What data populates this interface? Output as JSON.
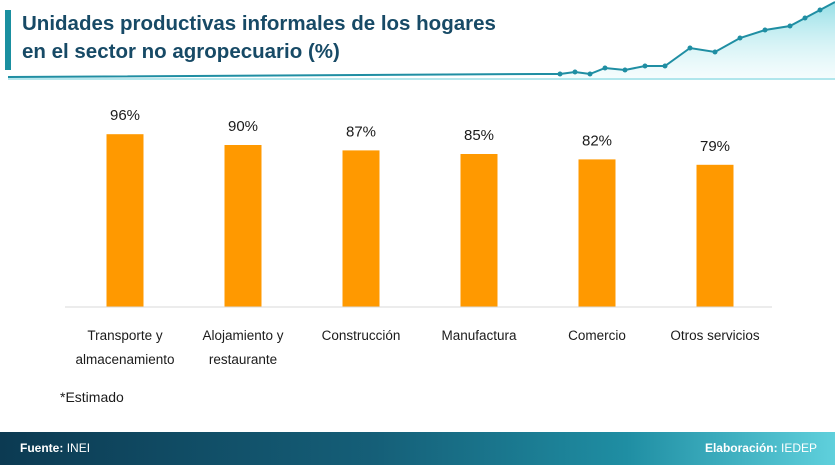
{
  "header": {
    "title_line1": "Unidades productivas informales de los hogares",
    "title_line2": "en el sector no agropecuario (%)"
  },
  "chart_data": {
    "type": "bar",
    "title": "Unidades productivas informales de los hogares en el sector no agropecuario (%)",
    "categories": [
      [
        "Transporte y",
        "almacenamiento"
      ],
      [
        "Alojamiento y",
        "restaurante"
      ],
      [
        "Construcción"
      ],
      [
        "Manufactura"
      ],
      [
        "Comercio"
      ],
      [
        "Otros servicios"
      ]
    ],
    "values": [
      96,
      90,
      87,
      85,
      82,
      79
    ],
    "data_labels": [
      "96%",
      "90%",
      "87%",
      "85%",
      "82%",
      "79%"
    ],
    "bar_color": "#ff9900",
    "ylim": [
      0,
      100
    ],
    "xlabel": "",
    "ylabel": "",
    "grid": false
  },
  "footnote": "*Estimado",
  "footer": {
    "source_label": "Fuente:",
    "source_value": "INEI",
    "credit_label": "Elaboración:",
    "credit_value": "IEDEP"
  },
  "colors": {
    "title": "#174a66",
    "accent": "#1a8fa0",
    "bar": "#ff9900",
    "footer_start": "#0c3a52",
    "footer_end": "#5fd0dc"
  }
}
